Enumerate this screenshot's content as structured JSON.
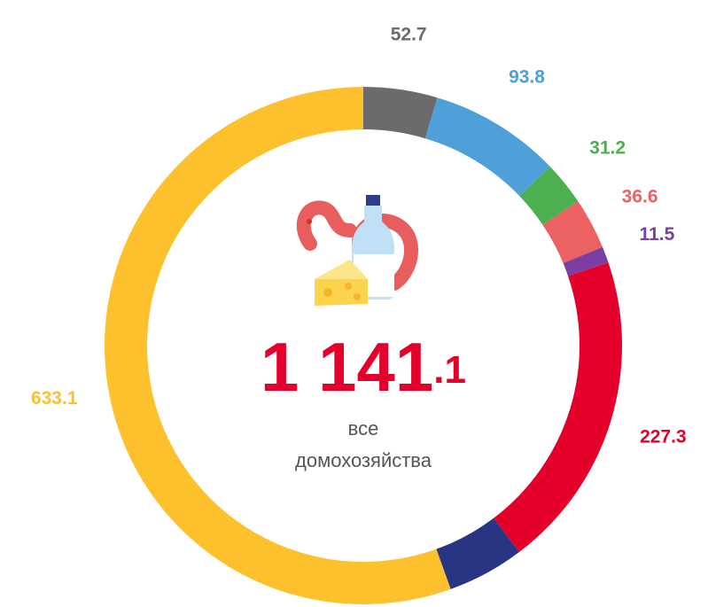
{
  "chart_data": {
    "type": "donut",
    "values": [
      52.7,
      93.8,
      31.2,
      36.6,
      11.5,
      227.3,
      54.9,
      633.1
    ],
    "colors": [
      "#6b6b6b",
      "#4f9fd9",
      "#4caf50",
      "#ec6262",
      "#7b3fa3",
      "#e4002b",
      "#283583",
      "#fdc12e"
    ],
    "total_label": "1 141.1",
    "center_text": [
      "все",
      "домохозяйства"
    ]
  }
}
